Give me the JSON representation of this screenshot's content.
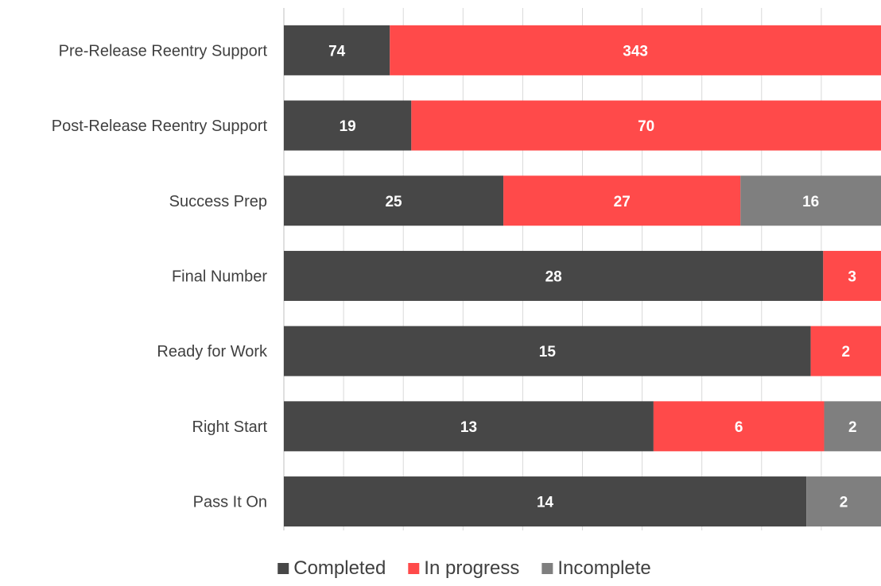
{
  "chart_data": {
    "type": "bar",
    "orientation": "horizontal",
    "stacked": "percent",
    "categories": [
      "Pre-Release Reentry Support",
      "Post-Release Reentry Support",
      "Success Prep",
      "Final Number",
      "Ready for Work",
      "Right Start",
      "Pass It On"
    ],
    "series": [
      {
        "name": "Completed",
        "color": "#474747",
        "values": [
          74,
          19,
          25,
          28,
          15,
          13,
          14
        ]
      },
      {
        "name": "In progress",
        "color": "#ff4a4a",
        "values": [
          343,
          70,
          27,
          3,
          2,
          6,
          0
        ]
      },
      {
        "name": "Incomplete",
        "color": "#7f7f7f",
        "values": [
          0,
          0,
          16,
          0,
          0,
          2,
          2
        ]
      }
    ],
    "data_labels": [
      [
        "74",
        "343",
        ""
      ],
      [
        "19",
        "70",
        ""
      ],
      [
        "25",
        "27",
        "16"
      ],
      [
        "28",
        "3",
        ""
      ],
      [
        "15",
        "2",
        ""
      ],
      [
        "13",
        "6",
        "2"
      ],
      [
        "14",
        "",
        "2"
      ]
    ],
    "legend_position": "bottom",
    "grid": true
  }
}
